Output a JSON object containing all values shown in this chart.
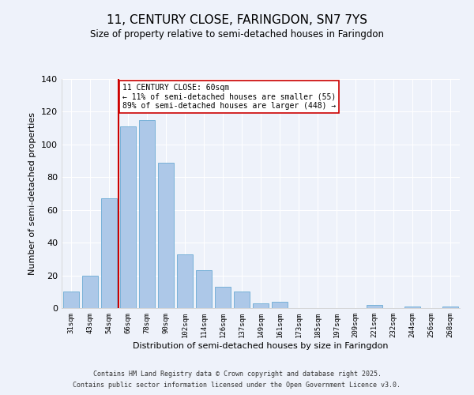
{
  "title": "11, CENTURY CLOSE, FARINGDON, SN7 7YS",
  "subtitle": "Size of property relative to semi-detached houses in Faringdon",
  "xlabel": "Distribution of semi-detached houses by size in Faringdon",
  "ylabel": "Number of semi-detached properties",
  "bar_labels": [
    "31sqm",
    "43sqm",
    "54sqm",
    "66sqm",
    "78sqm",
    "90sqm",
    "102sqm",
    "114sqm",
    "126sqm",
    "137sqm",
    "149sqm",
    "161sqm",
    "173sqm",
    "185sqm",
    "197sqm",
    "209sqm",
    "221sqm",
    "232sqm",
    "244sqm",
    "256sqm",
    "268sqm"
  ],
  "bar_values": [
    10,
    20,
    67,
    111,
    115,
    89,
    33,
    23,
    13,
    10,
    3,
    4,
    0,
    0,
    0,
    0,
    2,
    0,
    1,
    0,
    1
  ],
  "bar_color": "#adc8e8",
  "bar_edge_color": "#6aaad4",
  "vline_color": "#cc0000",
  "annotation_title": "11 CENTURY CLOSE: 60sqm",
  "annotation_line1": "← 11% of semi-detached houses are smaller (55)",
  "annotation_line2": "89% of semi-detached houses are larger (448) →",
  "annotation_box_color": "#ffffff",
  "annotation_box_edge": "#cc0000",
  "ylim": [
    0,
    140
  ],
  "yticks": [
    0,
    20,
    40,
    60,
    80,
    100,
    120,
    140
  ],
  "bg_color": "#eef2fa",
  "grid_color": "#ffffff",
  "footer1": "Contains HM Land Registry data © Crown copyright and database right 2025.",
  "footer2": "Contains public sector information licensed under the Open Government Licence v3.0."
}
